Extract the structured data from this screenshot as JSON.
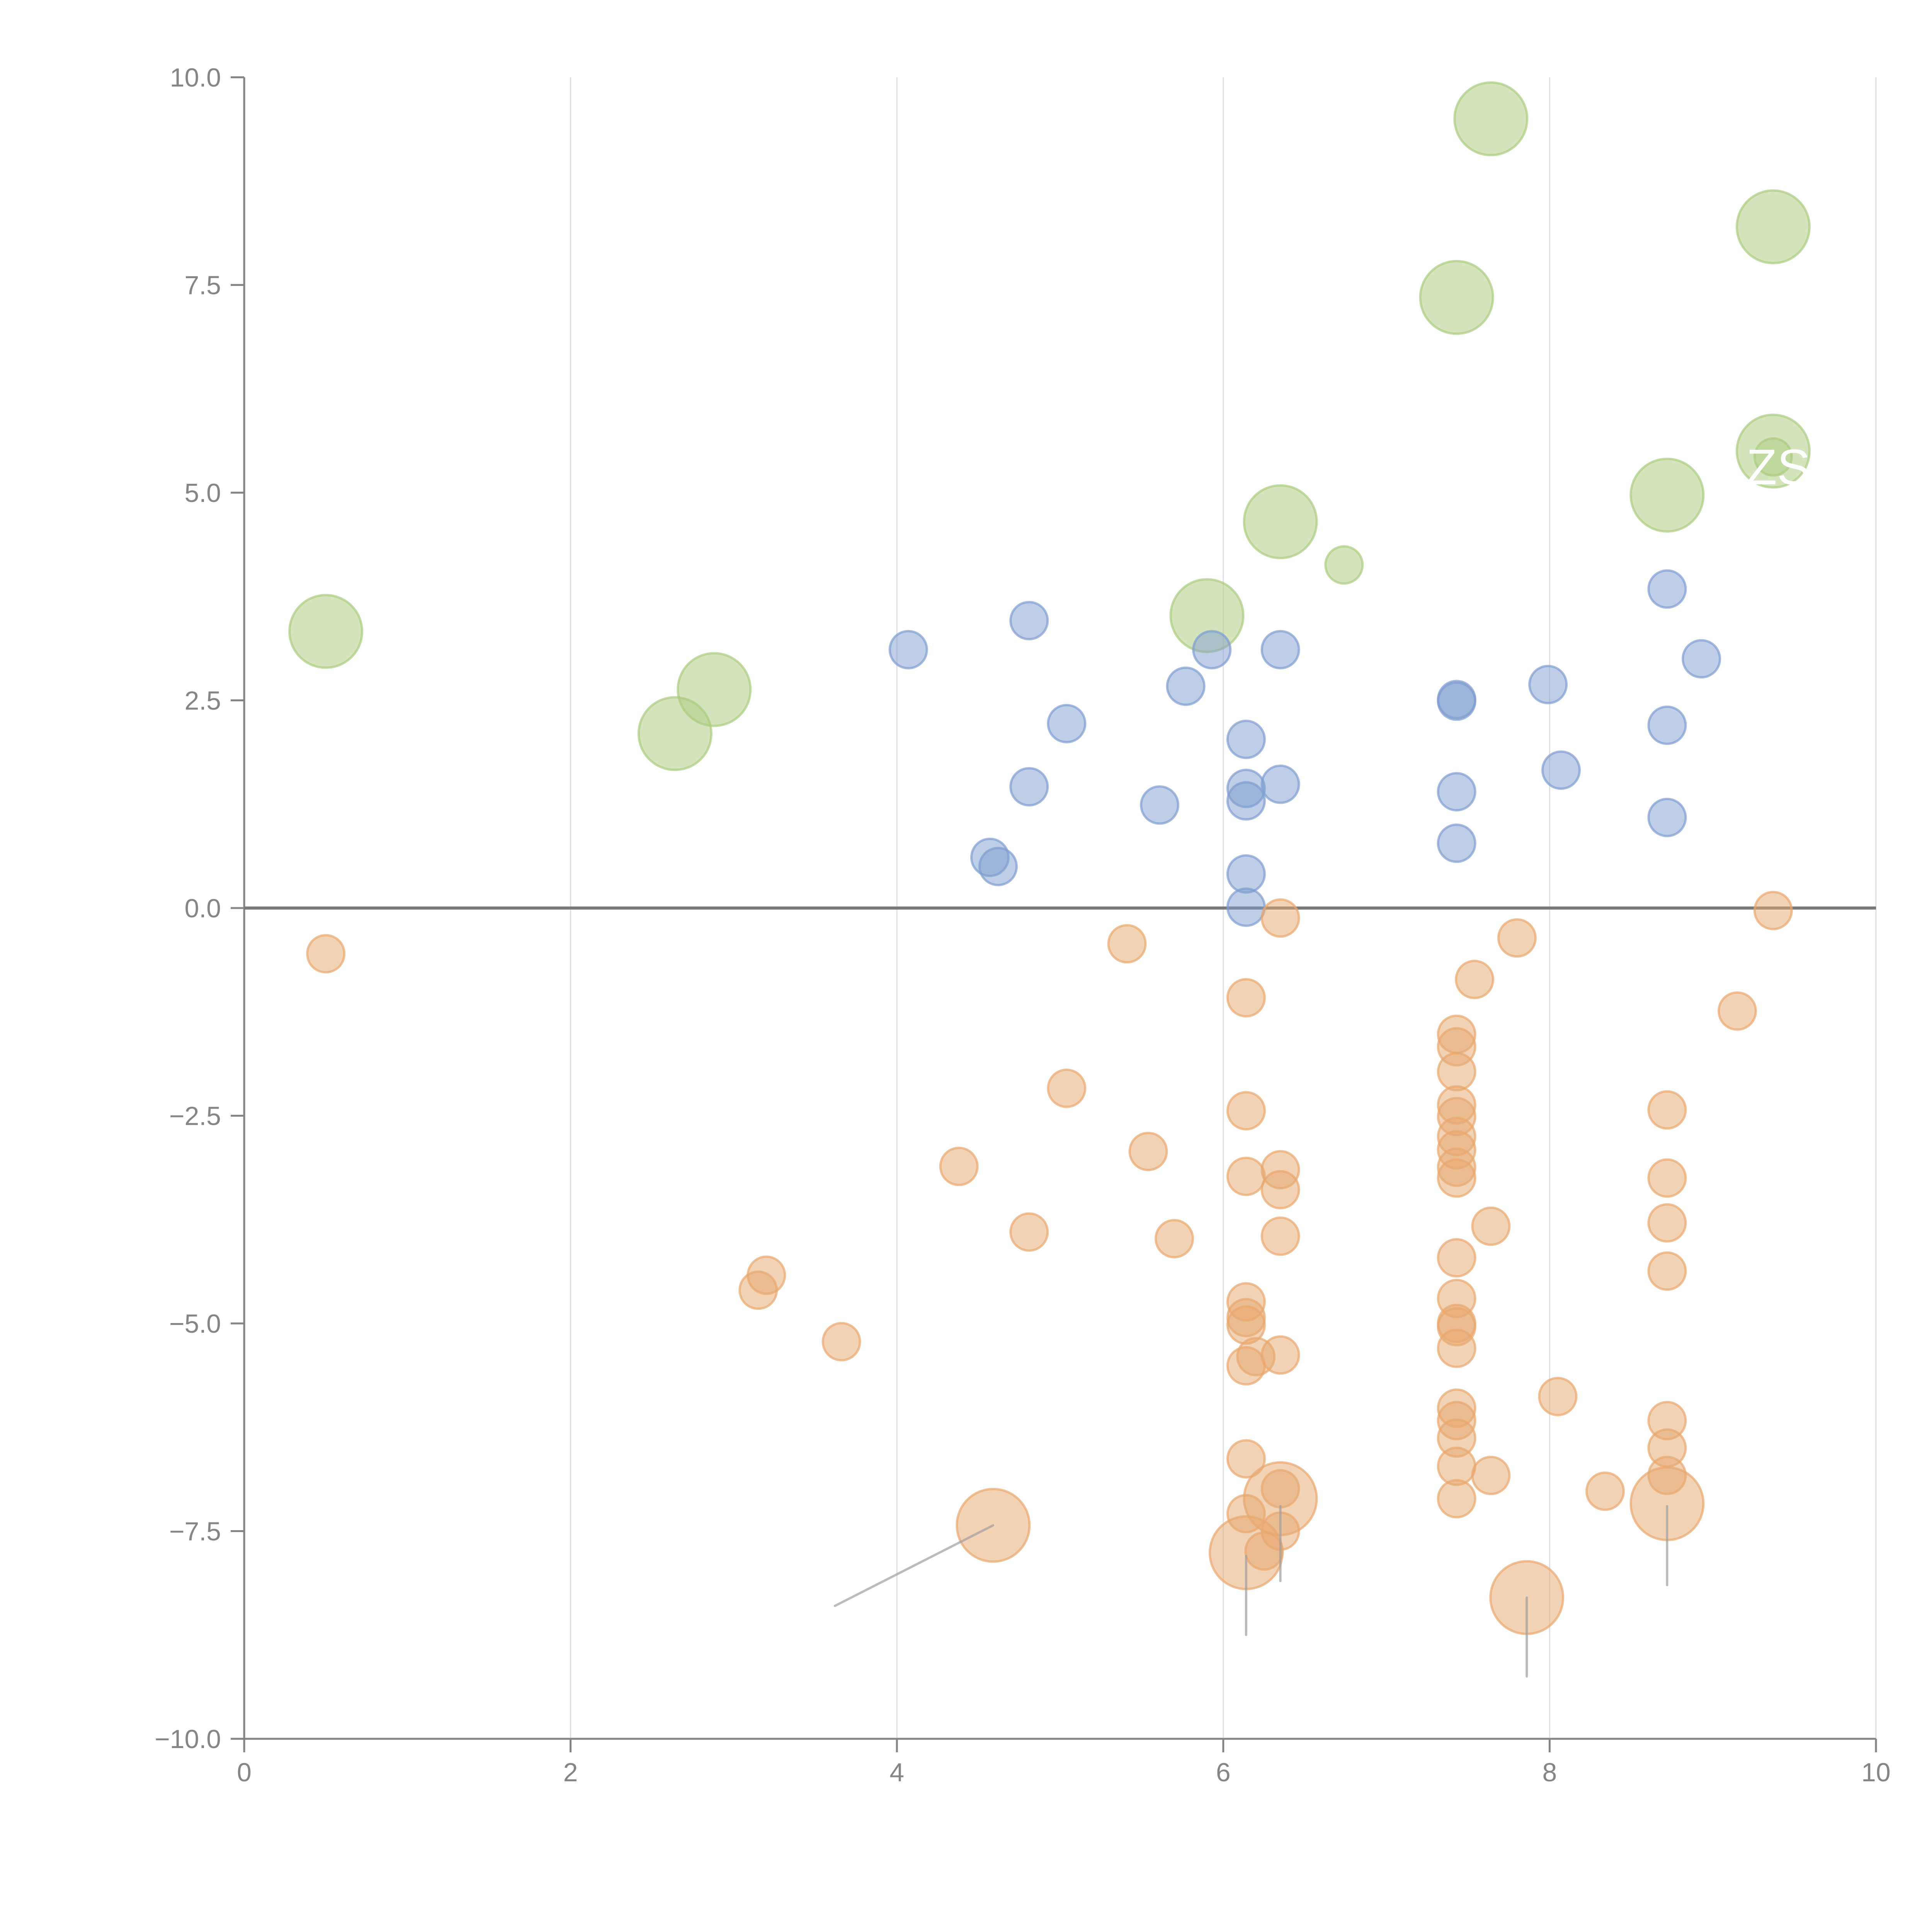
{
  "chart_data": {
    "type": "scatter",
    "subtype": "bubble",
    "title": "",
    "xlabel": "",
    "ylabel": "",
    "xlim": [
      0,
      10
    ],
    "ylim": [
      -10,
      10
    ],
    "x_ticks": [
      "0",
      "2",
      "4",
      "6",
      "8",
      "10"
    ],
    "x_tick_values": [
      0,
      2,
      4,
      6,
      8,
      10
    ],
    "y_ticks": [
      "10.0",
      "7.5",
      "5.0",
      "2.5",
      "0.0",
      "−2.5",
      "−5.0",
      "−7.5",
      "−10.0"
    ],
    "y_tick_values": [
      10,
      7.5,
      5,
      2.5,
      0,
      -2.5,
      -5,
      -7.5,
      -10
    ],
    "grid": "vertical",
    "zero_line": true,
    "legend": "none",
    "colors": {
      "green": "#a9cc7e",
      "blue": "#7d9dd0",
      "orange": "#e8a76e"
    },
    "series": [
      {
        "name": "green",
        "color": "#a9cc7e",
        "points": [
          [
            0.5,
            3.33,
            2
          ],
          [
            2.64,
            2.1,
            2
          ],
          [
            2.88,
            2.63,
            2
          ],
          [
            5.9,
            3.52,
            2
          ],
          [
            6.35,
            4.65,
            2
          ],
          [
            6.74,
            4.13,
            1
          ],
          [
            7.43,
            7.35,
            2
          ],
          [
            7.64,
            9.5,
            2
          ],
          [
            8.72,
            4.97,
            2
          ],
          [
            9.37,
            8.2,
            2
          ],
          [
            9.37,
            5.5,
            2
          ],
          [
            9.37,
            5.43,
            1
          ]
        ]
      },
      {
        "name": "blue",
        "color": "#7d9dd0",
        "points": [
          [
            4.07,
            3.11,
            1
          ],
          [
            4.81,
            3.46,
            1
          ],
          [
            5.04,
            2.22,
            1
          ],
          [
            4.81,
            1.46,
            1
          ],
          [
            4.57,
            0.61,
            1
          ],
          [
            4.62,
            0.5,
            1
          ],
          [
            5.61,
            1.24,
            1
          ],
          [
            5.77,
            2.67,
            1
          ],
          [
            5.93,
            3.11,
            1
          ],
          [
            6.14,
            2.03,
            1
          ],
          [
            6.14,
            1.44,
            1
          ],
          [
            6.14,
            1.29,
            1
          ],
          [
            6.14,
            0.41,
            1
          ],
          [
            6.14,
            0.01,
            1
          ],
          [
            6.35,
            3.11,
            1
          ],
          [
            6.35,
            1.49,
            1
          ],
          [
            7.43,
            2.51,
            1
          ],
          [
            7.43,
            2.49,
            1
          ],
          [
            7.43,
            1.4,
            1
          ],
          [
            7.43,
            0.78,
            1
          ],
          [
            7.99,
            2.69,
            1
          ],
          [
            8.07,
            1.66,
            1
          ],
          [
            8.72,
            3.84,
            1
          ],
          [
            8.72,
            2.2,
            1
          ],
          [
            8.72,
            1.09,
            1
          ],
          [
            8.93,
            3.0,
            1
          ]
        ]
      },
      {
        "name": "orange",
        "color": "#e8a76e",
        "points": [
          [
            0.5,
            -0.55,
            1
          ],
          [
            3.15,
            -4.6,
            1
          ],
          [
            3.2,
            -4.42,
            1
          ],
          [
            3.66,
            -5.22,
            1
          ],
          [
            4.38,
            -3.11,
            1
          ],
          [
            4.81,
            -3.9,
            1
          ],
          [
            5.04,
            -2.17,
            1
          ],
          [
            5.41,
            -0.43,
            1
          ],
          [
            5.54,
            -2.93,
            1
          ],
          [
            5.7,
            -3.98,
            1
          ],
          [
            4.59,
            -7.43,
            2
          ],
          [
            6.14,
            -1.08,
            1
          ],
          [
            6.14,
            -2.44,
            1
          ],
          [
            6.14,
            -3.23,
            1
          ],
          [
            6.14,
            -4.74,
            1
          ],
          [
            6.14,
            -4.93,
            1
          ],
          [
            6.14,
            -5.02,
            1
          ],
          [
            6.14,
            -5.51,
            1
          ],
          [
            6.2,
            -5.4,
            1
          ],
          [
            6.14,
            -6.63,
            1
          ],
          [
            6.14,
            -7.29,
            1
          ],
          [
            6.14,
            -7.76,
            2
          ],
          [
            6.25,
            -7.74,
            1
          ],
          [
            6.35,
            -0.12,
            1
          ],
          [
            6.35,
            -3.15,
            1
          ],
          [
            6.35,
            -3.39,
            1
          ],
          [
            6.35,
            -3.95,
            1
          ],
          [
            6.35,
            -5.38,
            1
          ],
          [
            6.35,
            -6.99,
            1
          ],
          [
            6.35,
            -7.11,
            2
          ],
          [
            6.35,
            -7.5,
            1
          ],
          [
            7.43,
            -1.52,
            1
          ],
          [
            7.43,
            -1.67,
            1
          ],
          [
            7.43,
            -1.97,
            1
          ],
          [
            7.43,
            -2.37,
            1
          ],
          [
            7.43,
            -2.51,
            1
          ],
          [
            7.43,
            -2.75,
            1
          ],
          [
            7.43,
            -2.91,
            1
          ],
          [
            7.43,
            -3.12,
            1
          ],
          [
            7.43,
            -3.25,
            1
          ],
          [
            7.43,
            -4.21,
            1
          ],
          [
            7.43,
            -4.7,
            1
          ],
          [
            7.43,
            -5.0,
            1
          ],
          [
            7.43,
            -5.04,
            1
          ],
          [
            7.43,
            -5.3,
            1
          ],
          [
            7.43,
            -6.02,
            1
          ],
          [
            7.43,
            -6.17,
            1
          ],
          [
            7.43,
            -6.38,
            1
          ],
          [
            7.43,
            -6.72,
            1
          ],
          [
            7.43,
            -7.11,
            1
          ],
          [
            7.54,
            -0.86,
            1
          ],
          [
            7.64,
            -3.83,
            1
          ],
          [
            7.64,
            -6.83,
            1
          ],
          [
            7.8,
            -0.36,
            1
          ],
          [
            7.86,
            -8.3,
            2
          ],
          [
            8.05,
            -5.88,
            1
          ],
          [
            8.34,
            -7.02,
            1
          ],
          [
            8.72,
            -2.43,
            1
          ],
          [
            8.72,
            -3.25,
            1
          ],
          [
            8.72,
            -3.79,
            1
          ],
          [
            8.72,
            -4.37,
            1
          ],
          [
            8.72,
            -6.17,
            1
          ],
          [
            8.72,
            -6.5,
            1
          ],
          [
            8.72,
            -6.83,
            1
          ],
          [
            8.72,
            -7.17,
            2
          ],
          [
            9.15,
            -1.24,
            1
          ],
          [
            9.37,
            -0.03,
            1
          ]
        ]
      }
    ],
    "annotations": [
      {
        "text": "AZS",
        "x": 9.0,
        "y": 5.1,
        "color": "#ffffff"
      }
    ]
  }
}
